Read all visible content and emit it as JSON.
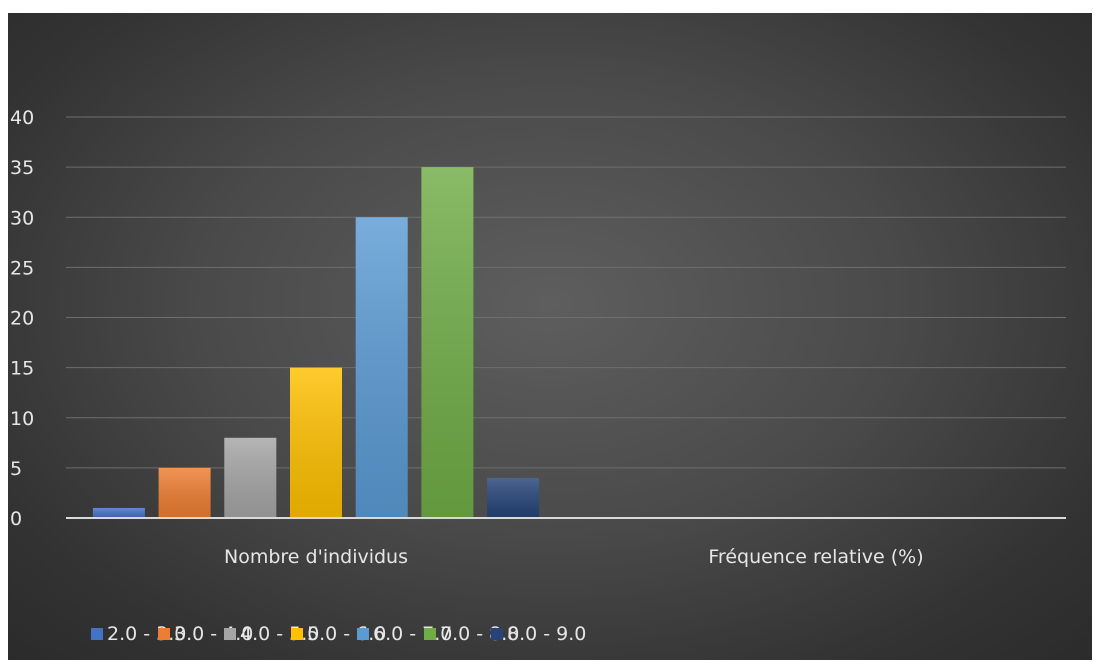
{
  "chart_data": {
    "type": "bar",
    "categories": [
      "Nombre d'individus",
      "Fréquence relative (%)"
    ],
    "series": [
      {
        "name": "2.0 - 3.0",
        "values": [
          1,
          0
        ],
        "color": "#4472c4"
      },
      {
        "name": "3.0 - 4.0",
        "values": [
          5,
          0
        ],
        "color": "#ed7d31"
      },
      {
        "name": "4.0 - 5.0",
        "values": [
          8,
          0
        ],
        "color": "#a5a5a5"
      },
      {
        "name": "5.0 - 6.0",
        "values": [
          15,
          0
        ],
        "color": "#ffc000"
      },
      {
        "name": "6.0 - 7.0",
        "values": [
          30,
          0
        ],
        "color": "#5b9bd5"
      },
      {
        "name": "7.0 - 8.0",
        "values": [
          35,
          0
        ],
        "color": "#70ad47"
      },
      {
        "name": "8.0 - 9.0",
        "values": [
          4,
          0
        ],
        "color": "#264478"
      }
    ],
    "yticks": [
      "0",
      "5",
      "10",
      "15",
      "20",
      "25",
      "30",
      "35",
      "40"
    ],
    "ylim": [
      0,
      40
    ],
    "grid": true,
    "legend_position": "bottom"
  }
}
